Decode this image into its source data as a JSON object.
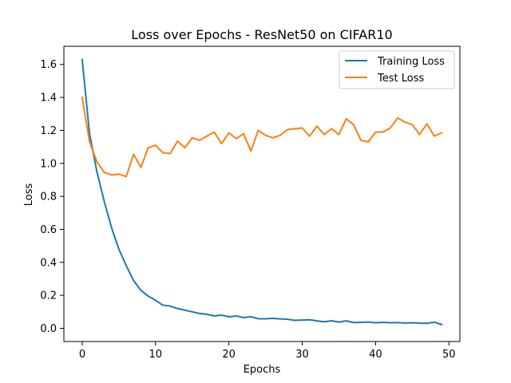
{
  "chart_data": {
    "type": "line",
    "title": "Loss over Epochs - ResNet50 on CIFAR10",
    "xlabel": "Epochs",
    "ylabel": "Loss",
    "xlim": [
      -2.5,
      51.5
    ],
    "ylim": [
      -0.08,
      1.71
    ],
    "xticks": [
      0,
      10,
      20,
      30,
      40,
      50
    ],
    "yticks": [
      0.0,
      0.2,
      0.4,
      0.6,
      0.8,
      1.0,
      1.2,
      1.4,
      1.6
    ],
    "grid": false,
    "legend_position": "top-right",
    "x": [
      0,
      1,
      2,
      3,
      4,
      5,
      6,
      7,
      8,
      9,
      10,
      11,
      12,
      13,
      14,
      15,
      16,
      17,
      18,
      19,
      20,
      21,
      22,
      23,
      24,
      25,
      26,
      27,
      28,
      29,
      30,
      31,
      32,
      33,
      34,
      35,
      36,
      37,
      38,
      39,
      40,
      41,
      42,
      43,
      44,
      45,
      46,
      47,
      48,
      49
    ],
    "series": [
      {
        "name": "Training Loss",
        "color": "#1f77b4",
        "values": [
          1.63,
          1.18,
          0.95,
          0.77,
          0.61,
          0.48,
          0.38,
          0.29,
          0.23,
          0.195,
          0.17,
          0.14,
          0.135,
          0.12,
          0.11,
          0.1,
          0.09,
          0.085,
          0.075,
          0.08,
          0.07,
          0.075,
          0.065,
          0.07,
          0.058,
          0.058,
          0.06,
          0.057,
          0.055,
          0.048,
          0.05,
          0.052,
          0.045,
          0.04,
          0.046,
          0.038,
          0.045,
          0.035,
          0.036,
          0.038,
          0.034,
          0.036,
          0.034,
          0.035,
          0.032,
          0.034,
          0.031,
          0.03,
          0.037,
          0.023
        ]
      },
      {
        "name": "Test Loss",
        "color": "#ff7f0e",
        "values": [
          1.4,
          1.13,
          1.01,
          0.945,
          0.93,
          0.935,
          0.92,
          1.055,
          0.975,
          1.095,
          1.11,
          1.065,
          1.06,
          1.135,
          1.095,
          1.155,
          1.14,
          1.165,
          1.19,
          1.12,
          1.185,
          1.15,
          1.18,
          1.075,
          1.2,
          1.17,
          1.155,
          1.17,
          1.205,
          1.21,
          1.215,
          1.165,
          1.225,
          1.175,
          1.21,
          1.175,
          1.27,
          1.235,
          1.14,
          1.13,
          1.19,
          1.19,
          1.215,
          1.275,
          1.25,
          1.235,
          1.175,
          1.24,
          1.165,
          1.185
        ]
      }
    ]
  }
}
